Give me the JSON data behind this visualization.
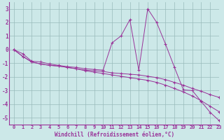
{
  "x": [
    0,
    1,
    2,
    3,
    4,
    5,
    6,
    7,
    8,
    9,
    10,
    11,
    12,
    13,
    14,
    15,
    16,
    17,
    18,
    19,
    20,
    21,
    22,
    23
  ],
  "line1": [
    0,
    -0.3,
    -0.85,
    -0.9,
    -1.05,
    -1.15,
    -1.25,
    -1.3,
    -1.4,
    -1.45,
    -1.5,
    0.5,
    1.0,
    2.2,
    -1.5,
    3.0,
    2.0,
    0.4,
    -1.3,
    -2.95,
    -3.0,
    -3.8,
    -4.6,
    -5.2
  ],
  "line2": [
    0,
    -0.5,
    -0.9,
    -1.05,
    -1.15,
    -1.2,
    -1.3,
    -1.4,
    -1.5,
    -1.55,
    -1.6,
    -1.7,
    -1.75,
    -1.8,
    -1.85,
    -1.95,
    -2.05,
    -2.2,
    -2.4,
    -2.6,
    -2.85,
    -3.05,
    -3.3,
    -3.5
  ],
  "line3": [
    0,
    -0.5,
    -0.9,
    -1.05,
    -1.15,
    -1.2,
    -1.3,
    -1.4,
    -1.55,
    -1.65,
    -1.75,
    -1.85,
    -1.95,
    -2.05,
    -2.15,
    -2.25,
    -2.4,
    -2.6,
    -2.85,
    -3.1,
    -3.4,
    -3.75,
    -4.15,
    -4.55
  ],
  "line_color": "#993399",
  "bg_color": "#cce8e8",
  "grid_color": "#99bbbb",
  "xlabel": "Windchill (Refroidissement éolien,°C)",
  "ylim": [
    -5.5,
    3.5
  ],
  "xlim": [
    -0.5,
    23
  ],
  "yticks": [
    -5,
    -4,
    -3,
    -2,
    -1,
    0,
    1,
    2,
    3
  ],
  "xticks": [
    0,
    1,
    2,
    3,
    4,
    5,
    6,
    7,
    8,
    9,
    10,
    11,
    12,
    13,
    14,
    15,
    16,
    17,
    18,
    19,
    20,
    21,
    22,
    23
  ],
  "tick_fontsize": 5.0,
  "label_fontsize": 5.5
}
